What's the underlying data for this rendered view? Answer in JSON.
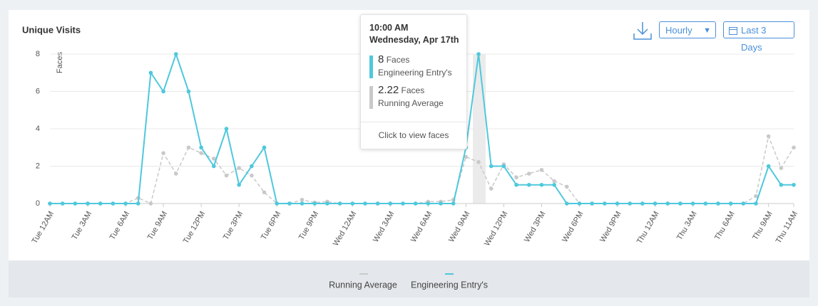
{
  "chart_data": {
    "type": "line",
    "title": "Unique Visits",
    "y_label": "Faces",
    "controls": {
      "interval": "Hourly",
      "range": "Last 3 Days"
    },
    "categories": [
      "Tue 12AM",
      null,
      null,
      "Tue 3AM",
      null,
      null,
      "Tue 6AM",
      null,
      null,
      "Tue 9AM",
      null,
      null,
      "Tue 12PM",
      null,
      null,
      "Tue 3PM",
      null,
      null,
      "Tue 6PM",
      null,
      null,
      "Tue 9PM",
      null,
      null,
      "Wed 12AM",
      null,
      null,
      "Wed 3AM",
      null,
      null,
      "Wed 6AM",
      null,
      null,
      "Wed 9AM",
      null,
      null,
      "Wed 12PM",
      null,
      null,
      "Wed 3PM",
      null,
      null,
      "Wed 6PM",
      null,
      null,
      "Wed 9PM",
      null,
      null,
      "Thu 12AM",
      null,
      null,
      "Thu 3AM",
      null,
      null,
      "Thu 6AM",
      null,
      null,
      "Thu 9AM",
      null,
      "Thu 11AM"
    ],
    "series": [
      {
        "name": "Running Average",
        "color": "#c9c9c9",
        "dashed": true,
        "values": [
          0,
          0,
          0,
          0,
          0,
          0,
          0,
          0.3,
          0,
          2.7,
          1.6,
          3.0,
          2.7,
          2.4,
          1.5,
          1.9,
          1.5,
          0.6,
          0,
          0,
          0.2,
          0.05,
          0.1,
          0,
          0,
          0,
          0,
          0,
          0,
          0,
          0.1,
          0.1,
          0.2,
          2.5,
          2.22,
          0.8,
          2.1,
          1.4,
          1.6,
          1.8,
          1.2,
          0.9,
          0,
          0,
          0,
          0,
          0,
          0,
          0,
          0,
          0,
          0,
          0,
          0,
          0,
          0,
          0.4,
          3.6,
          1.9,
          3.0
        ]
      },
      {
        "name": "Engineering Entry's",
        "color": "#4fc8dc",
        "dashed": false,
        "values": [
          0,
          0,
          0,
          0,
          0,
          0,
          0,
          0,
          7,
          6,
          8,
          6,
          3,
          2,
          4,
          1,
          2,
          3,
          0,
          0,
          0,
          0,
          0,
          0,
          0,
          0,
          0,
          0,
          0,
          0,
          0,
          0,
          0,
          3,
          8,
          2,
          2,
          1,
          1,
          1,
          1,
          0,
          0,
          0,
          0,
          0,
          0,
          0,
          0,
          0,
          0,
          0,
          0,
          0,
          0,
          0,
          0,
          2,
          1,
          1
        ]
      }
    ],
    "ylim": [
      0,
      8
    ],
    "yticks": [
      0,
      2,
      4,
      6,
      8
    ],
    "grid": true,
    "tooltip": {
      "time": "10:00 AM",
      "date": "Wednesday, Apr 17th",
      "unit": "Faces",
      "action": "Click to view faces"
    }
  }
}
